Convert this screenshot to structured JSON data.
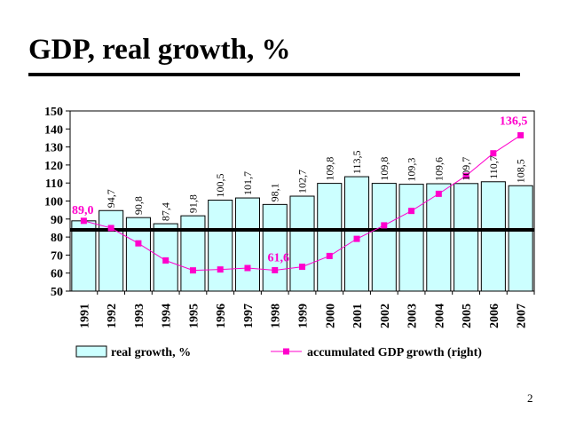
{
  "slide": {
    "title": "GDP, real growth, %",
    "page_number": "2"
  },
  "colors": {
    "bar_fill": "#ccffff",
    "bar_stroke": "#000000",
    "line": "#ff00cc",
    "reference_line": "#000000",
    "label_magenta": "#ff00cc"
  },
  "chart_data": {
    "type": "bar",
    "categories": [
      "1991",
      "1992",
      "1993",
      "1994",
      "1995",
      "1996",
      "1997",
      "1998",
      "1999",
      "2000",
      "2001",
      "2002",
      "2003",
      "2004",
      "2005",
      "2006",
      "2007"
    ],
    "ylim": [
      50,
      150
    ],
    "yticks": [
      50,
      60,
      70,
      80,
      90,
      100,
      110,
      120,
      130,
      140,
      150
    ],
    "grid": false,
    "legend_position": "bottom",
    "reference_line_value": 84,
    "series": [
      {
        "name": "real growth, %",
        "type": "bar",
        "values": [
          89.0,
          94.7,
          90.8,
          87.4,
          91.8,
          100.5,
          101.7,
          98.1,
          102.7,
          109.8,
          113.5,
          109.8,
          109.3,
          109.6,
          109.7,
          110.7,
          108.5
        ],
        "labels": [
          "",
          "94,7",
          "90,8",
          "87,4",
          "91,8",
          "100,5",
          "101,7",
          "98,1",
          "102,7",
          "109,8",
          "113,5",
          "109,8",
          "109,3",
          "109,6",
          "109,7",
          "110,7",
          "108,5"
        ]
      },
      {
        "name": "accumulated GDP growth (right)",
        "type": "line",
        "values": [
          89.0,
          85.0,
          76.5,
          67.0,
          61.5,
          62.0,
          62.8,
          61.6,
          63.5,
          69.5,
          79.0,
          86.5,
          94.5,
          104.0,
          114.0,
          126.5,
          136.5
        ],
        "labels": [
          "89,0",
          "",
          "",
          "",
          "",
          "",
          "",
          "61,6",
          "",
          "",
          "",
          "",
          "",
          "",
          "",
          "",
          "136,5"
        ]
      }
    ]
  }
}
